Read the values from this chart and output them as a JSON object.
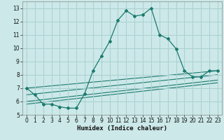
{
  "title": "",
  "xlabel": "Humidex (Indice chaleur)",
  "ylabel": "",
  "background_color": "#cce8e8",
  "grid_color": "#aad0d0",
  "line_color": "#1a7a6e",
  "xlim": [
    -0.5,
    23.5
  ],
  "ylim": [
    5,
    13.5
  ],
  "yticks": [
    5,
    6,
    7,
    8,
    9,
    10,
    11,
    12,
    13
  ],
  "xticks": [
    0,
    1,
    2,
    3,
    4,
    5,
    6,
    7,
    8,
    9,
    10,
    11,
    12,
    13,
    14,
    15,
    16,
    17,
    18,
    19,
    20,
    21,
    22,
    23
  ],
  "series": [
    [
      0,
      7.0
    ],
    [
      1,
      6.5
    ],
    [
      2,
      5.8
    ],
    [
      3,
      5.8
    ],
    [
      4,
      5.6
    ],
    [
      5,
      5.5
    ],
    [
      6,
      5.5
    ],
    [
      7,
      6.6
    ],
    [
      8,
      8.3
    ],
    [
      9,
      9.4
    ],
    [
      10,
      10.5
    ],
    [
      11,
      12.1
    ],
    [
      12,
      12.8
    ],
    [
      13,
      12.4
    ],
    [
      14,
      12.5
    ],
    [
      15,
      13.0
    ],
    [
      16,
      11.0
    ],
    [
      17,
      10.7
    ],
    [
      18,
      9.95
    ],
    [
      19,
      8.3
    ],
    [
      20,
      7.85
    ],
    [
      21,
      7.85
    ],
    [
      22,
      8.3
    ],
    [
      23,
      8.3
    ]
  ],
  "flat_lines": [
    {
      "x": [
        0,
        23
      ],
      "y": [
        7.0,
        8.3
      ]
    },
    {
      "x": [
        0,
        23
      ],
      "y": [
        6.5,
        8.0
      ]
    },
    {
      "x": [
        0,
        23
      ],
      "y": [
        6.0,
        7.6
      ]
    },
    {
      "x": [
        0,
        23
      ],
      "y": [
        5.8,
        7.4
      ]
    }
  ]
}
